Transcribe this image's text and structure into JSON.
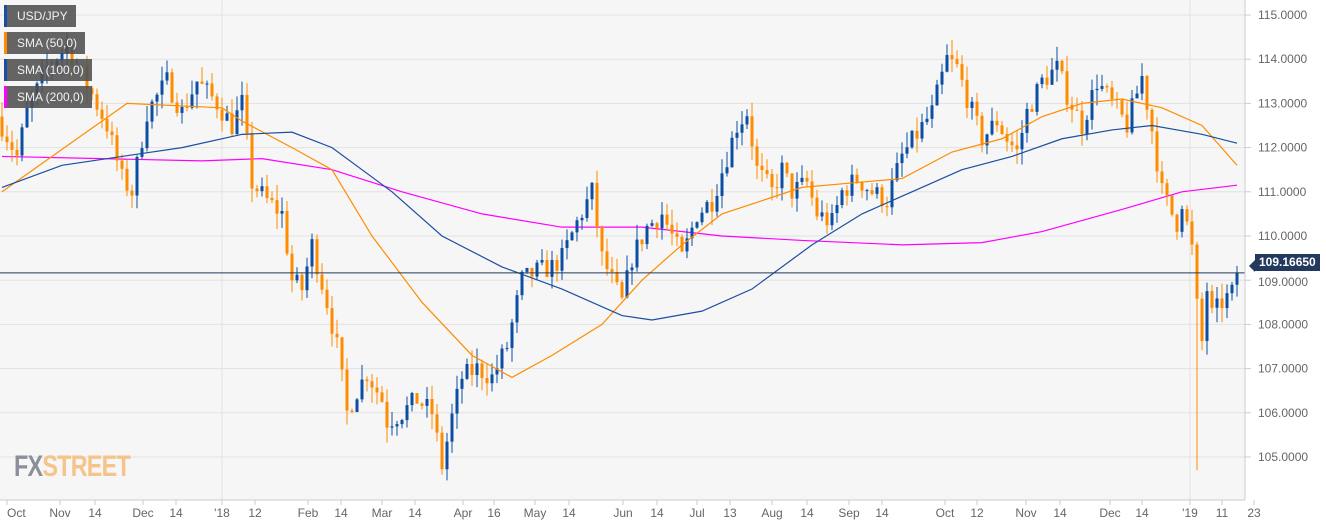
{
  "chart_data": {
    "type": "candlestick",
    "symbol": "USD/JPY",
    "legend": [
      {
        "label": "USD/JPY",
        "color": "#1a4fa0"
      },
      {
        "label": "SMA (50,0)",
        "color": "#ff8c00"
      },
      {
        "label": "SMA (100,0)",
        "color": "#1a4fa0"
      },
      {
        "label": "SMA (200,0)",
        "color": "#ff00ff"
      }
    ],
    "ylim": [
      104.3,
      115.3
    ],
    "y_ticks": [
      "115.0000",
      "114.0000",
      "113.0000",
      "112.0000",
      "111.0000",
      "110.0000",
      "109.0000",
      "108.0000",
      "107.0000",
      "106.0000",
      "105.0000"
    ],
    "y_tick_values": [
      115,
      114,
      113,
      112,
      111,
      110,
      109,
      108,
      107,
      106,
      105
    ],
    "x_ticks": [
      {
        "t": 1,
        "label": "Oct"
      },
      {
        "t": 11.6,
        "label": "Nov"
      },
      {
        "t": 18.6,
        "label": "14"
      },
      {
        "t": 28.2,
        "label": "Dec"
      },
      {
        "t": 34.8,
        "label": "14"
      },
      {
        "t": 44,
        "label": "'18"
      },
      {
        "t": 50.6,
        "label": "12"
      },
      {
        "t": 61.2,
        "label": "Feb"
      },
      {
        "t": 67.8,
        "label": "14"
      },
      {
        "t": 76,
        "label": "Mar"
      },
      {
        "t": 82.6,
        "label": "14"
      },
      {
        "t": 92.2,
        "label": "Apr"
      },
      {
        "t": 98.4,
        "label": "16"
      },
      {
        "t": 106.6,
        "label": "May"
      },
      {
        "t": 113.4,
        "label": "14"
      },
      {
        "t": 124.2,
        "label": "Jun"
      },
      {
        "t": 131,
        "label": "14"
      },
      {
        "t": 139,
        "label": "Jul"
      },
      {
        "t": 145.6,
        "label": "13"
      },
      {
        "t": 154,
        "label": "Aug"
      },
      {
        "t": 161,
        "label": "14"
      },
      {
        "t": 169.4,
        "label": "Sep"
      },
      {
        "t": 176,
        "label": "14"
      },
      {
        "t": 188.6,
        "label": "Oct"
      },
      {
        "t": 195,
        "label": "12"
      },
      {
        "t": 204.8,
        "label": "Nov"
      },
      {
        "t": 211.6,
        "label": "14"
      },
      {
        "t": 221.6,
        "label": "Dec"
      },
      {
        "t": 228,
        "label": "14"
      },
      {
        "t": 237.6,
        "label": "'19"
      },
      {
        "t": 244,
        "label": "11"
      },
      {
        "t": 250.4,
        "label": "23"
      }
    ],
    "year_separators": [
      44,
      237.6
    ],
    "close_anchors": [
      [
        0,
        112.5
      ],
      [
        3,
        111.8
      ],
      [
        5,
        112.8
      ],
      [
        9,
        113.8
      ],
      [
        13,
        114.3
      ],
      [
        18,
        113.2
      ],
      [
        21,
        112.5
      ],
      [
        24,
        111.3
      ],
      [
        26,
        111.0
      ],
      [
        29,
        112.8
      ],
      [
        33,
        113.5
      ],
      [
        36,
        112.8
      ],
      [
        39,
        113.5
      ],
      [
        43,
        113.0
      ],
      [
        46,
        112.5
      ],
      [
        48,
        113.0
      ],
      [
        50,
        111.2
      ],
      [
        53,
        110.8
      ],
      [
        56,
        110.5
      ],
      [
        58,
        109.0
      ],
      [
        60,
        108.8
      ],
      [
        62,
        109.8
      ],
      [
        65,
        108.5
      ],
      [
        67,
        107.5
      ],
      [
        69,
        106.0
      ],
      [
        71,
        106.5
      ],
      [
        73,
        106.9
      ],
      [
        76,
        106.3
      ],
      [
        77,
        105.8
      ],
      [
        80,
        106.0
      ],
      [
        83,
        106.3
      ],
      [
        86,
        106.0
      ],
      [
        88,
        104.8
      ],
      [
        90,
        105.9
      ],
      [
        92,
        106.8
      ],
      [
        95,
        107.0
      ],
      [
        98,
        106.8
      ],
      [
        101,
        107.5
      ],
      [
        104,
        109.0
      ],
      [
        107,
        109.2
      ],
      [
        110,
        109.3
      ],
      [
        112,
        109.5
      ],
      [
        115,
        110.3
      ],
      [
        118,
        111.0
      ],
      [
        120,
        109.5
      ],
      [
        122,
        109.0
      ],
      [
        124,
        108.5
      ],
      [
        126,
        109.5
      ],
      [
        129,
        110.2
      ],
      [
        132,
        110.5
      ],
      [
        136,
        109.5
      ],
      [
        139,
        110.5
      ],
      [
        142,
        110.8
      ],
      [
        145,
        111.8
      ],
      [
        147,
        112.5
      ],
      [
        149,
        112.8
      ],
      [
        151,
        111.5
      ],
      [
        154,
        111.0
      ],
      [
        156,
        111.5
      ],
      [
        158,
        111.0
      ],
      [
        161,
        111.2
      ],
      [
        163,
        110.5
      ],
      [
        166,
        110.3
      ],
      [
        168,
        111.0
      ],
      [
        171,
        111.3
      ],
      [
        174,
        111.0
      ],
      [
        177,
        110.8
      ],
      [
        180,
        111.8
      ],
      [
        183,
        112.3
      ],
      [
        186,
        112.8
      ],
      [
        189,
        114.0
      ],
      [
        191,
        113.8
      ],
      [
        194,
        112.8
      ],
      [
        196,
        112.2
      ],
      [
        199,
        112.6
      ],
      [
        201,
        112.2
      ],
      [
        203,
        111.9
      ],
      [
        205,
        112.8
      ],
      [
        208,
        113.5
      ],
      [
        211,
        113.8
      ],
      [
        213,
        113.2
      ],
      [
        216,
        112.5
      ],
      [
        219,
        113.5
      ],
      [
        222,
        113.0
      ],
      [
        225,
        112.5
      ],
      [
        228,
        113.6
      ],
      [
        230,
        112.4
      ],
      [
        232,
        111.0
      ],
      [
        234,
        110.5
      ],
      [
        235,
        110.3
      ],
      [
        236,
        110.8
      ],
      [
        238,
        109.7
      ],
      [
        239,
        108.4
      ],
      [
        240,
        107.6
      ],
      [
        241,
        108.8
      ],
      [
        242,
        108.2
      ],
      [
        244,
        108.5
      ],
      [
        246,
        108.7
      ],
      [
        247,
        109.17
      ]
    ],
    "low_overrides": [
      [
        88,
        104.6
      ],
      [
        239,
        104.7
      ]
    ],
    "sma50": [
      [
        0,
        111.0
      ],
      [
        25,
        113.0
      ],
      [
        44,
        112.9
      ],
      [
        48,
        112.6
      ],
      [
        58,
        112.0
      ],
      [
        66,
        111.5
      ],
      [
        74,
        110.0
      ],
      [
        84,
        108.5
      ],
      [
        94,
        107.3
      ],
      [
        102,
        106.8
      ],
      [
        110,
        107.3
      ],
      [
        120,
        108.0
      ],
      [
        128,
        109.0
      ],
      [
        136,
        109.8
      ],
      [
        144,
        110.5
      ],
      [
        152,
        110.8
      ],
      [
        160,
        111.1
      ],
      [
        170,
        111.2
      ],
      [
        180,
        111.3
      ],
      [
        190,
        111.9
      ],
      [
        200,
        112.2
      ],
      [
        208,
        112.7
      ],
      [
        216,
        113.0
      ],
      [
        224,
        113.1
      ],
      [
        232,
        112.9
      ],
      [
        240,
        112.5
      ],
      [
        247,
        111.6
      ]
    ],
    "sma100": [
      [
        0,
        111.1
      ],
      [
        12,
        111.6
      ],
      [
        24,
        111.8
      ],
      [
        36,
        112.0
      ],
      [
        48,
        112.3
      ],
      [
        58,
        112.35
      ],
      [
        66,
        112.0
      ],
      [
        78,
        111.0
      ],
      [
        88,
        110.0
      ],
      [
        100,
        109.3
      ],
      [
        112,
        108.8
      ],
      [
        124,
        108.2
      ],
      [
        130,
        108.1
      ],
      [
        140,
        108.3
      ],
      [
        150,
        108.8
      ],
      [
        162,
        109.8
      ],
      [
        172,
        110.5
      ],
      [
        182,
        111.0
      ],
      [
        192,
        111.5
      ],
      [
        202,
        111.8
      ],
      [
        212,
        112.2
      ],
      [
        222,
        112.4
      ],
      [
        230,
        112.5
      ],
      [
        240,
        112.3
      ],
      [
        247,
        112.1
      ]
    ],
    "sma200": [
      [
        0,
        111.8
      ],
      [
        20,
        111.75
      ],
      [
        40,
        111.7
      ],
      [
        52,
        111.75
      ],
      [
        66,
        111.5
      ],
      [
        80,
        111.0
      ],
      [
        96,
        110.5
      ],
      [
        112,
        110.2
      ],
      [
        128,
        110.2
      ],
      [
        144,
        110.0
      ],
      [
        160,
        109.9
      ],
      [
        180,
        109.8
      ],
      [
        196,
        109.85
      ],
      [
        208,
        110.1
      ],
      [
        224,
        110.6
      ],
      [
        236,
        111.0
      ],
      [
        247,
        111.15
      ]
    ],
    "current_price": 109.1665,
    "current_price_label": "109.16650"
  },
  "watermark": {
    "fx": "FX",
    "street": "STREET"
  }
}
